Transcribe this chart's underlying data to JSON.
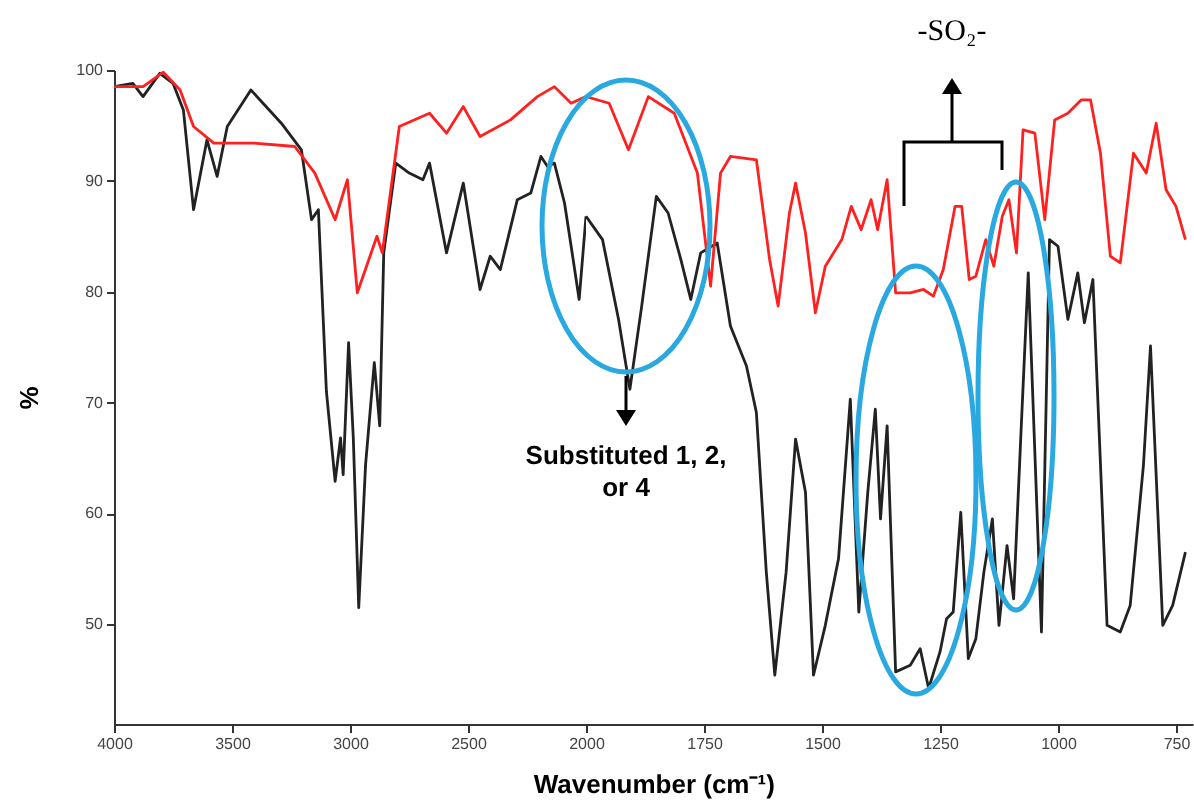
{
  "chart_data": [
    {
      "type": "line",
      "xlabel": "Wavenumber (cm⁻¹)",
      "ylabel": "%",
      "annotations": [
        "Substituted 1, 2, or 4",
        "-SO₂-"
      ],
      "xlim": [
        4000,
        2000
      ],
      "xticks": [
        4000,
        3500,
        3000,
        2500,
        2000
      ],
      "ylim": [
        41,
        100
      ],
      "yticks": [
        50,
        60,
        70,
        80,
        90,
        100
      ],
      "series": [
        {
          "color": "#222222",
          "x": [
            4000,
            3920,
            3877,
            3806,
            3750,
            3706,
            3663,
            3606,
            3563,
            3520,
            3420,
            3291,
            3206,
            3163,
            3134,
            3100,
            3063,
            3040,
            3029,
            3006,
            2986,
            2963,
            2934,
            2897,
            2874,
            2857,
            2806,
            2749,
            2691,
            2663,
            2591,
            2520,
            2449,
            2406,
            2363,
            2291,
            2234,
            2191,
            2163,
            2134,
            2091,
            2063,
            2029,
            2000
          ],
          "values": [
            98.5,
            98.8,
            97.6,
            99.7,
            98.8,
            96.4,
            87.4,
            93.7,
            90.4,
            94.9,
            98.2,
            95.2,
            92.8,
            86.5,
            87.4,
            71,
            62.9,
            66.8,
            63.5,
            75.4,
            66.8,
            51.5,
            64.4,
            73.6,
            67.9,
            83.5,
            91.6,
            90.7,
            90.1,
            91.6,
            83.5,
            89.8,
            80.2,
            83.2,
            82,
            88.3,
            88.9,
            92.2,
            91.3,
            91.6,
            88,
            84.1,
            79.3,
            86.8
          ]
        },
        {
          "color": "#ff2020",
          "x": [
            4000,
            3877,
            3791,
            3720,
            3663,
            3577,
            3520,
            3406,
            3234,
            3149,
            3063,
            3011,
            2969,
            2920,
            2886,
            2863,
            2791,
            2663,
            2591,
            2520,
            2449,
            2320,
            2206,
            2134,
            2063,
            2000
          ],
          "values": [
            98.5,
            98.5,
            99.8,
            98.2,
            94.9,
            93.4,
            93.4,
            93.4,
            93.1,
            90.7,
            86.5,
            90.1,
            79.9,
            82.9,
            85,
            83.5,
            94.9,
            96.1,
            94.3,
            96.7,
            94,
            95.5,
            97.6,
            98.5,
            97,
            97.6
          ]
        }
      ]
    },
    {
      "type": "line",
      "tick_labels": "x",
      "xlim": [
        2000,
        715
      ],
      "xticks": [
        1750,
        1500,
        1250,
        1000,
        750
      ],
      "ylim": [
        41,
        100
      ],
      "series": [
        {
          "color": "#222222",
          "x": [
            2000,
            1965,
            1931,
            1907,
            1882,
            1851,
            1826,
            1799,
            1778,
            1757,
            1722,
            1694,
            1660,
            1639,
            1618,
            1600,
            1576,
            1556,
            1535,
            1518,
            1493,
            1465,
            1440,
            1422,
            1403,
            1387,
            1376,
            1362,
            1344,
            1313,
            1292,
            1274,
            1250,
            1236,
            1222,
            1206,
            1190,
            1174,
            1157,
            1139,
            1125,
            1108,
            1094,
            1079,
            1063,
            1035,
            1018,
            1000,
            979,
            958,
            944,
            926,
            896,
            868,
            847,
            819,
            804,
            778,
            757,
            730
          ],
          "values": [
            86.8,
            84.7,
            77.5,
            71.2,
            78.7,
            88.6,
            87.1,
            82.9,
            79.3,
            83.5,
            84.4,
            76.9,
            73.3,
            69.1,
            54.7,
            45.4,
            54.7,
            66.7,
            61.9,
            45.4,
            49.9,
            55.9,
            70.3,
            51.1,
            61.9,
            69.4,
            59.5,
            67.9,
            45.7,
            46.3,
            47.8,
            44.2,
            47.5,
            50.5,
            51.1,
            60.1,
            46.9,
            48.7,
            54.7,
            59.5,
            49.9,
            57.1,
            52.3,
            66.7,
            81.7,
            49.3,
            84.7,
            84.1,
            77.5,
            81.7,
            77.2,
            81.1,
            49.9,
            49.3,
            51.7,
            64.3,
            75.1,
            49.9,
            51.7,
            56.5
          ]
        },
        {
          "color": "#ff2020",
          "x": [
            2000,
            1951,
            1910,
            1868,
            1813,
            1764,
            1736,
            1715,
            1694,
            1639,
            1611,
            1593,
            1569,
            1556,
            1535,
            1514,
            1493,
            1458,
            1438,
            1417,
            1396,
            1382,
            1362,
            1344,
            1313,
            1285,
            1264,
            1243,
            1218,
            1204,
            1188,
            1174,
            1153,
            1136,
            1118,
            1104,
            1088,
            1074,
            1049,
            1028,
            1007,
            979,
            951,
            931,
            910,
            889,
            868,
            840,
            813,
            792,
            771,
            750,
            730
          ],
          "values": [
            97.6,
            97,
            92.8,
            97.6,
            96.1,
            90.7,
            80.5,
            90.7,
            92.2,
            91.9,
            82.9,
            78.7,
            87.1,
            89.8,
            85.3,
            78.1,
            82.3,
            84.7,
            87.7,
            85.6,
            88.3,
            85.6,
            90.1,
            79.9,
            79.9,
            80.2,
            79.6,
            82,
            87.7,
            87.7,
            81.1,
            81.4,
            84.7,
            82.3,
            86.8,
            88.3,
            83.5,
            94.6,
            94.3,
            86.5,
            95.5,
            96.1,
            97.3,
            97.3,
            92.5,
            83.2,
            82.6,
            92.5,
            90.7,
            95.2,
            89.2,
            87.7,
            84.7
          ]
        }
      ]
    }
  ]
}
